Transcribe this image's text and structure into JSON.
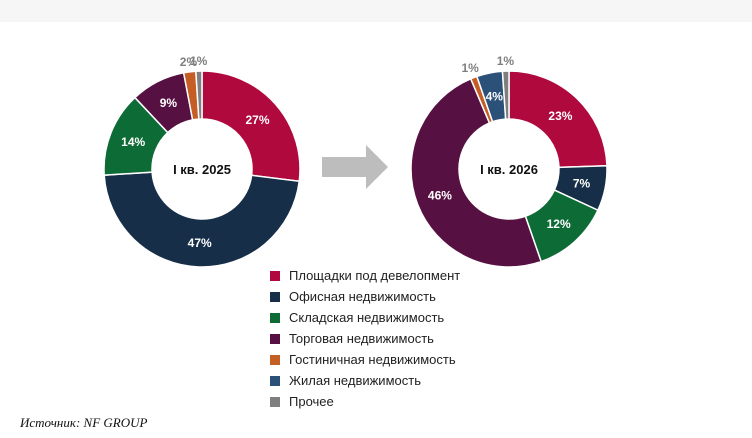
{
  "source_text": "Источник: NF GROUP",
  "colors": {
    "arrow": "#bdbdbd"
  },
  "chart_data": {
    "type": "pie",
    "variant": "donut",
    "categories": [
      "Площадки под девелопмент",
      "Офисная недвижимость",
      "Складская недвижимость",
      "Торговая недвижимость",
      "Гостиничная недвижимость",
      "Жилая недвижимость",
      "Прочее"
    ],
    "category_colors": [
      "#b0093d",
      "#162e47",
      "#0d6b35",
      "#561142",
      "#c45e25",
      "#2b5179",
      "#7f7f7f"
    ],
    "legend_position": "bottom-center",
    "charts": [
      {
        "center_label": "I кв. 2025",
        "values": [
          27,
          47,
          14,
          9,
          2,
          0,
          1
        ],
        "labels": [
          "27%",
          "47%",
          "14%",
          "9%",
          "2%",
          "",
          "1%"
        ]
      },
      {
        "center_label": "I кв. 2026",
        "values": [
          23,
          7,
          12,
          46,
          1,
          4,
          1
        ],
        "labels": [
          "23%",
          "7%",
          "12%",
          "46%",
          "1%",
          "4%",
          "1%"
        ]
      }
    ]
  }
}
